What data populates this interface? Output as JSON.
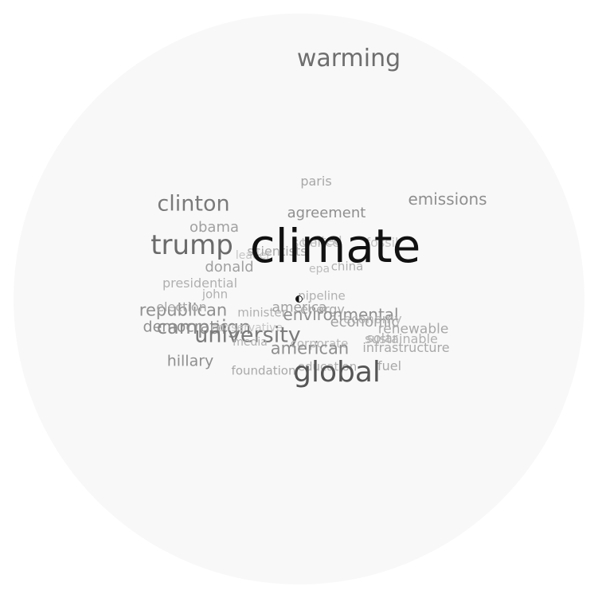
{
  "words": [
    {
      "text": "warming",
      "color": "#6e6e6e"
    },
    {
      "text": "paris",
      "color": "#a8a8a8"
    },
    {
      "text": "emissions",
      "color": "#8f8f8f"
    },
    {
      "text": "clinton",
      "color": "#7a7a7a"
    },
    {
      "text": "agreement",
      "color": "#8f8f8f"
    },
    {
      "text": "obama",
      "color": "#a0a0a0"
    },
    {
      "text": "trump",
      "color": "#6a6a6a"
    },
    {
      "text": "science",
      "color": "#bdbdbd"
    },
    {
      "text": "united",
      "color": "#bdbdbd"
    },
    {
      "text": "fossil",
      "color": "#c6c6c6"
    },
    {
      "text": "leader",
      "color": "#c6c6c6"
    },
    {
      "text": "scientists",
      "color": "#a8a8a8"
    },
    {
      "text": "donald",
      "color": "#a0a0a0"
    },
    {
      "text": "epa",
      "color": "#bdbdbd"
    },
    {
      "text": "china",
      "color": "#b0b0b0"
    },
    {
      "text": "presidential",
      "color": "#b0b0b0"
    },
    {
      "text": "john",
      "color": "#b0b0b0"
    },
    {
      "text": "pipeline",
      "color": "#b0b0b0"
    },
    {
      "text": "republican",
      "color": "#8f8f8f"
    },
    {
      "text": "election",
      "color": "#a8a8a8"
    },
    {
      "text": "minister",
      "color": "#b0b0b0"
    },
    {
      "text": "america",
      "color": "#a0a0a0"
    },
    {
      "text": "energy",
      "color": "#a8a8a8"
    },
    {
      "text": "environmental",
      "color": "#8f8f8f"
    },
    {
      "text": "economy",
      "color": "#b8b8b8"
    },
    {
      "text": "economic",
      "color": "#a0a0a0"
    },
    {
      "text": "democratic",
      "color": "#8f8f8f"
    },
    {
      "text": "campaign",
      "color": "#8a8a8a"
    },
    {
      "text": "conservative",
      "color": "#c6c6c6"
    },
    {
      "text": "university",
      "color": "#7a7a7a"
    },
    {
      "text": "renewable",
      "color": "#a8a8a8"
    },
    {
      "text": "solar",
      "color": "#b0b0b0"
    },
    {
      "text": "sustainable",
      "color": "#b0b0b0"
    },
    {
      "text": "media",
      "color": "#b0b0b0"
    },
    {
      "text": "corporate",
      "color": "#b8b8b8"
    },
    {
      "text": "american",
      "color": "#8f8f8f"
    },
    {
      "text": "infrastructure",
      "color": "#a8a8a8"
    },
    {
      "text": "hillary",
      "color": "#8f8f8f"
    },
    {
      "text": "foundation",
      "color": "#a8a8a8"
    },
    {
      "text": "education",
      "color": "#b0b0b0"
    },
    {
      "text": "fuel",
      "color": "#a8a8a8"
    },
    {
      "text": "global",
      "color": "#555555"
    },
    {
      "text": "climate",
      "color": "#111111"
    }
  ]
}
